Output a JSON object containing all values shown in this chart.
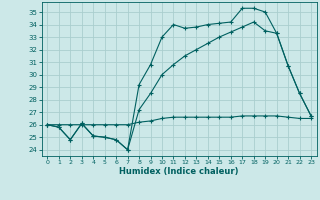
{
  "xlabel": "Humidex (Indice chaleur)",
  "bg_color": "#cce8e8",
  "grid_color": "#aacece",
  "line_color": "#006060",
  "xlim": [
    -0.5,
    23.5
  ],
  "ylim": [
    23.5,
    35.8
  ],
  "xticks": [
    0,
    1,
    2,
    3,
    4,
    5,
    6,
    7,
    8,
    9,
    10,
    11,
    12,
    13,
    14,
    15,
    16,
    17,
    18,
    19,
    20,
    21,
    22,
    23
  ],
  "yticks": [
    24,
    25,
    26,
    27,
    28,
    29,
    30,
    31,
    32,
    33,
    34,
    35
  ],
  "line1_x": [
    0,
    1,
    2,
    3,
    4,
    5,
    6,
    7,
    8,
    9,
    10,
    11,
    12,
    13,
    14,
    15,
    16,
    17,
    18,
    19,
    20,
    21,
    22,
    23
  ],
  "line1_y": [
    26.0,
    25.8,
    24.8,
    26.1,
    25.1,
    25.0,
    24.8,
    24.0,
    29.2,
    30.8,
    33.0,
    34.0,
    33.7,
    33.8,
    34.0,
    34.1,
    34.2,
    35.3,
    35.3,
    35.0,
    33.3,
    30.7,
    28.5,
    26.7
  ],
  "line2_x": [
    0,
    1,
    2,
    3,
    4,
    5,
    6,
    7,
    8,
    9,
    10,
    11,
    12,
    13,
    14,
    15,
    16,
    17,
    18,
    19,
    20,
    21,
    22,
    23
  ],
  "line2_y": [
    26.0,
    25.8,
    24.8,
    26.1,
    25.1,
    25.0,
    24.8,
    24.0,
    27.2,
    28.5,
    30.0,
    30.8,
    31.5,
    32.0,
    32.5,
    33.0,
    33.4,
    33.8,
    34.2,
    33.5,
    33.3,
    30.7,
    28.5,
    26.7
  ],
  "line3_x": [
    0,
    1,
    2,
    3,
    4,
    5,
    6,
    7,
    8,
    9,
    10,
    11,
    12,
    13,
    14,
    15,
    16,
    17,
    18,
    19,
    20,
    21,
    22,
    23
  ],
  "line3_y": [
    26.0,
    26.0,
    26.0,
    26.0,
    26.0,
    26.0,
    26.0,
    26.0,
    26.2,
    26.3,
    26.5,
    26.6,
    26.6,
    26.6,
    26.6,
    26.6,
    26.6,
    26.7,
    26.7,
    26.7,
    26.7,
    26.6,
    26.5,
    26.5
  ]
}
